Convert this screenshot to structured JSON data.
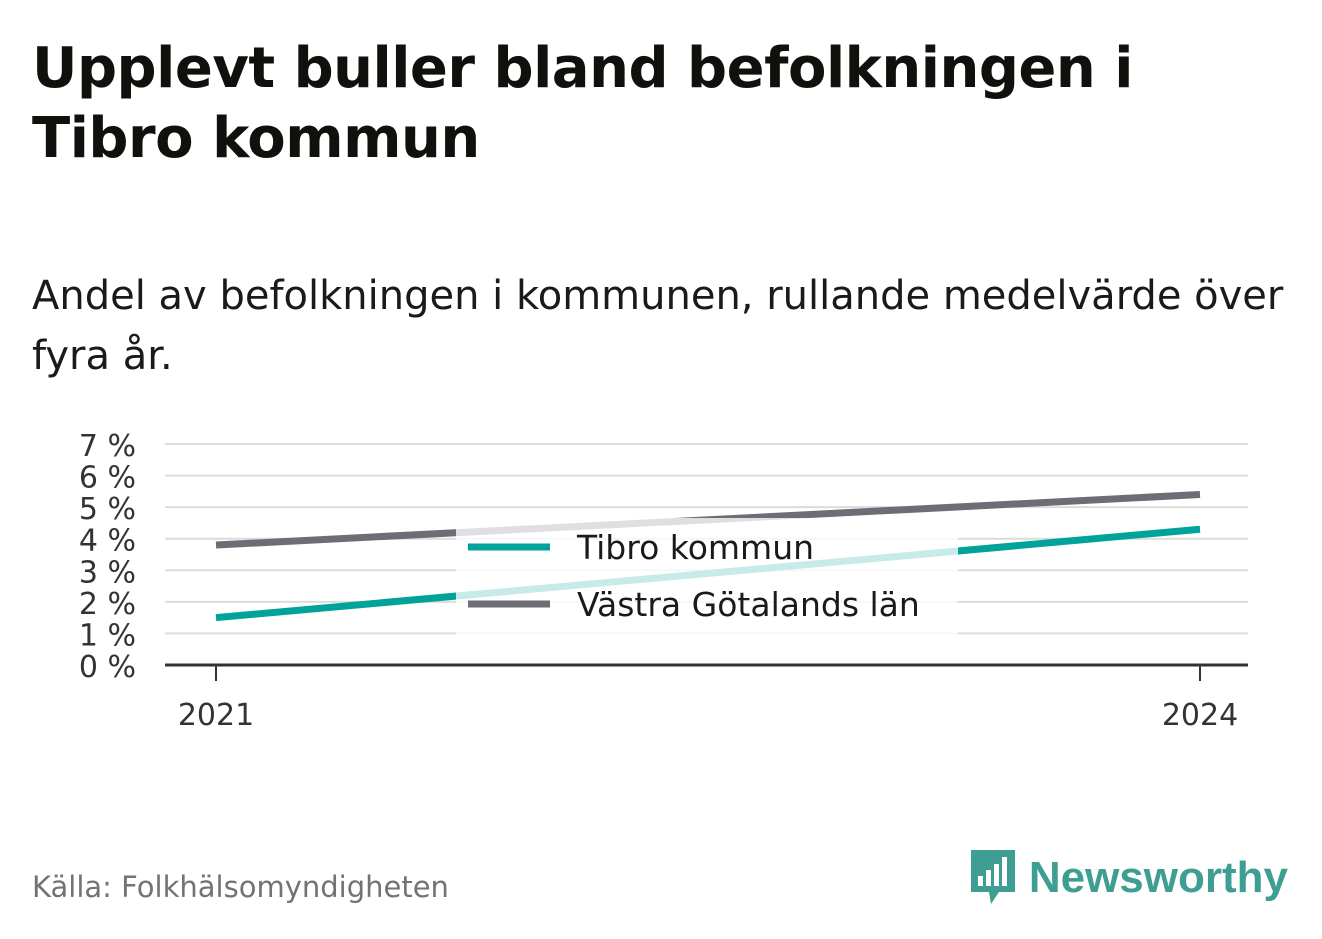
{
  "title": "Upplevt buller bland befolkningen i Tibro kommun",
  "subtitle": "Andel av befolkningen i kommunen, rullande medelvärde över fyra år.",
  "source": "Källa: Folkhälsomyndigheten",
  "brand": {
    "name": "Newsworthy",
    "icon": "newsworthy-logo-icon",
    "color": "#3f9e93"
  },
  "chart_data": {
    "type": "line",
    "x": [
      "2021",
      "2024"
    ],
    "ylim": [
      0,
      7
    ],
    "yticks": [
      "0 %",
      "1 %",
      "2 %",
      "3 %",
      "4 %",
      "5 %",
      "6 %",
      "7 %"
    ],
    "grid": true,
    "legend_position": "center",
    "series": [
      {
        "name": "Tibro kommun",
        "values": [
          1.5,
          4.3
        ],
        "color": "#00a39a"
      },
      {
        "name": "Västra Götalands län",
        "values": [
          3.8,
          5.4
        ],
        "color": "#6e6d75"
      }
    ]
  }
}
